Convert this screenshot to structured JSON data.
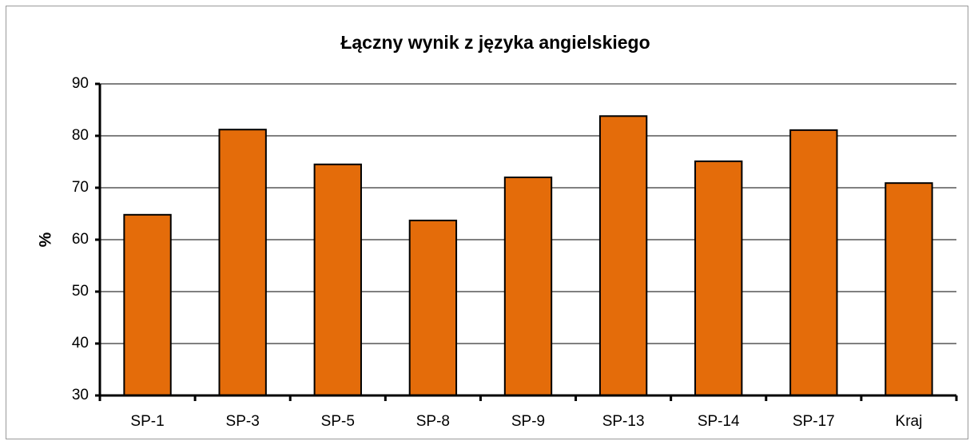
{
  "chart_data": {
    "type": "bar",
    "title": "Łączny wynik z języka angielskiego",
    "y_label": "%",
    "categories": [
      "SP-1",
      "SP-3",
      "SP-5",
      "SP-8",
      "SP-9",
      "SP-13",
      "SP-14",
      "SP-17",
      "Kraj"
    ],
    "values": [
      64.8,
      81.2,
      74.5,
      63.7,
      72,
      83.8,
      75.1,
      81.1,
      70.9
    ],
    "color": "#e46c0a",
    "ylim": [
      30,
      90
    ],
    "yticks": [
      30,
      40,
      50,
      60,
      70,
      80,
      90
    ],
    "grid": true
  }
}
